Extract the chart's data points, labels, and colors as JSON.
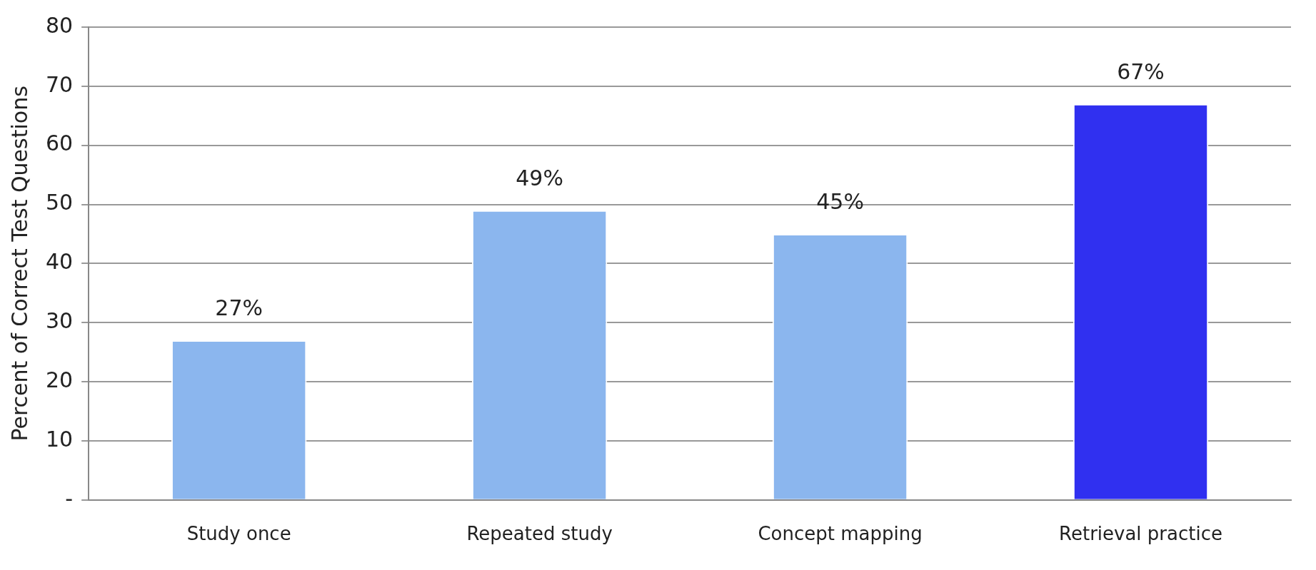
{
  "chart_data": {
    "type": "bar",
    "ylabel": "Percent of Correct Test Questions",
    "categories": [
      "Study once",
      "Repeated study",
      "Concept mapping",
      "Retrieval practice"
    ],
    "values": [
      27,
      49,
      45,
      67
    ],
    "colors": [
      "#8bb6ee",
      "#8bb6ee",
      "#8bb6ee",
      "#3030f0"
    ],
    "value_labels": [
      "27%",
      "49%",
      "45%",
      "67%"
    ],
    "ylim": [
      0,
      80
    ],
    "yticks": [
      {
        "value": 0,
        "label": "-"
      },
      10,
      20,
      30,
      40,
      50,
      60,
      70,
      80
    ],
    "grid": "y",
    "legend": false
  }
}
